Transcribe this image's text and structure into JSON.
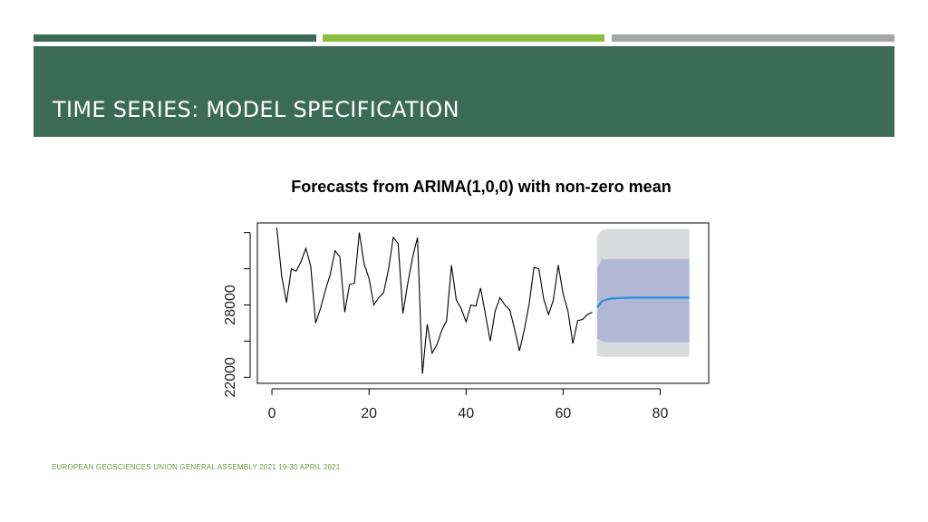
{
  "slide": {
    "title": "TIME SERIES: MODEL SPECIFICATION",
    "footer": "EUROPEAN GEOSCIENCES UNION GENERAL ASSEMBLY 2021 19-30 APRIL 2021"
  },
  "colors": {
    "header_bg": "#3b6a58",
    "accent_bar_1": "#3b6a58",
    "accent_bar_2": "#8cbd42",
    "accent_bar_3": "#a6a6a6",
    "footer_text": "#6b9a3a",
    "history_line": "#000000",
    "forecast_line": "#2f8fd8",
    "band_80": "#b0b8d6",
    "band_95": "#d9dadc"
  },
  "chart_data": {
    "type": "line",
    "title": "Forecasts from ARIMA(1,0,0) with non-zero mean",
    "xlabel": "",
    "ylabel": "",
    "xlim": [
      -3,
      90
    ],
    "ylim": [
      21500,
      34800
    ],
    "x_ticks": [
      "0",
      "20",
      "40",
      "60",
      "80"
    ],
    "y_ticks": [
      "22000",
      "28000"
    ],
    "y_minor_ticks": [
      25000,
      31000,
      34000
    ],
    "grid": false,
    "legend": "none",
    "series": [
      {
        "role": "observed",
        "x": [
          1,
          2,
          3,
          4,
          5,
          6,
          7,
          8,
          9,
          10,
          11,
          12,
          13,
          14,
          15,
          16,
          17,
          18,
          19,
          20,
          21,
          22,
          23,
          24,
          25,
          26,
          27,
          28,
          29,
          30,
          31,
          32,
          33,
          34,
          35,
          36,
          37,
          38,
          39,
          40,
          41,
          42,
          43,
          44,
          45,
          46,
          47,
          48,
          49,
          50,
          51,
          52,
          53,
          54,
          55,
          56,
          57,
          58,
          59,
          60,
          61,
          62,
          63,
          64,
          65,
          66
        ],
        "values": [
          34400,
          30400,
          28200,
          31000,
          30800,
          31600,
          32700,
          31200,
          26500,
          27700,
          29200,
          30500,
          32500,
          32000,
          27400,
          29700,
          29800,
          34000,
          31400,
          30200,
          28000,
          28600,
          29000,
          30900,
          33600,
          33100,
          27300,
          29800,
          32000,
          33600,
          22300,
          26400,
          24000,
          24700,
          25900,
          26700,
          31300,
          28400,
          27700,
          26600,
          28000,
          27900,
          29400,
          27200,
          25000,
          27500,
          28600,
          28000,
          27600,
          26000,
          24200,
          25900,
          28100,
          31100,
          31000,
          28500,
          27200,
          28400,
          31300,
          28900,
          27500,
          24800,
          26700,
          26800,
          27200,
          27400
        ]
      },
      {
        "role": "forecast",
        "x": [
          67,
          68,
          69,
          70,
          71,
          72,
          73,
          74,
          75,
          76,
          77,
          78,
          79,
          80,
          81,
          82,
          83,
          84,
          85,
          86
        ],
        "values": [
          27800,
          28300,
          28450,
          28530,
          28560,
          28580,
          28590,
          28600,
          28610,
          28610,
          28610,
          28610,
          28610,
          28610,
          28610,
          28610,
          28610,
          28610,
          28610,
          28610
        ],
        "lo80": [
          25200,
          25000,
          24900,
          24900,
          24900,
          24900,
          24900,
          24900,
          24900,
          24900,
          24900,
          24900,
          24900,
          24900,
          24900,
          24900,
          24900,
          24900,
          24900,
          24900
        ],
        "hi80": [
          31000,
          31800,
          31800,
          31800,
          31800,
          31800,
          31800,
          31800,
          31800,
          31800,
          31800,
          31800,
          31800,
          31800,
          31800,
          31800,
          31800,
          31800,
          31800,
          31800
        ],
        "lo95": [
          23800,
          23700,
          23700,
          23700,
          23700,
          23700,
          23700,
          23700,
          23700,
          23700,
          23700,
          23700,
          23700,
          23700,
          23700,
          23700,
          23700,
          23700,
          23700,
          23700
        ],
        "hi95": [
          33700,
          34200,
          34300,
          34300,
          34300,
          34300,
          34300,
          34300,
          34300,
          34300,
          34300,
          34300,
          34300,
          34300,
          34300,
          34300,
          34300,
          34300,
          34300,
          34300
        ]
      }
    ]
  }
}
